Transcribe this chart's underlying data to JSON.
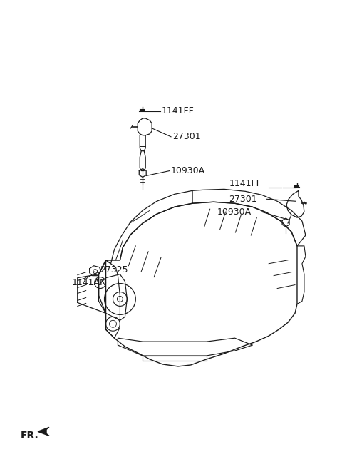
{
  "bg_color": "#ffffff",
  "line_color": "#1a1a1a",
  "labels": {
    "top_left_bolt": "1141FF",
    "top_left_coil": "27301",
    "top_left_plug": "10930A",
    "top_right_bolt": "1141FF",
    "top_right_coil": "27301",
    "top_right_plug": "10930A",
    "bottom_left_bolt": "1141AN",
    "bottom_left_bracket": "27325"
  },
  "fr_label": "FR.",
  "font_size": 9
}
